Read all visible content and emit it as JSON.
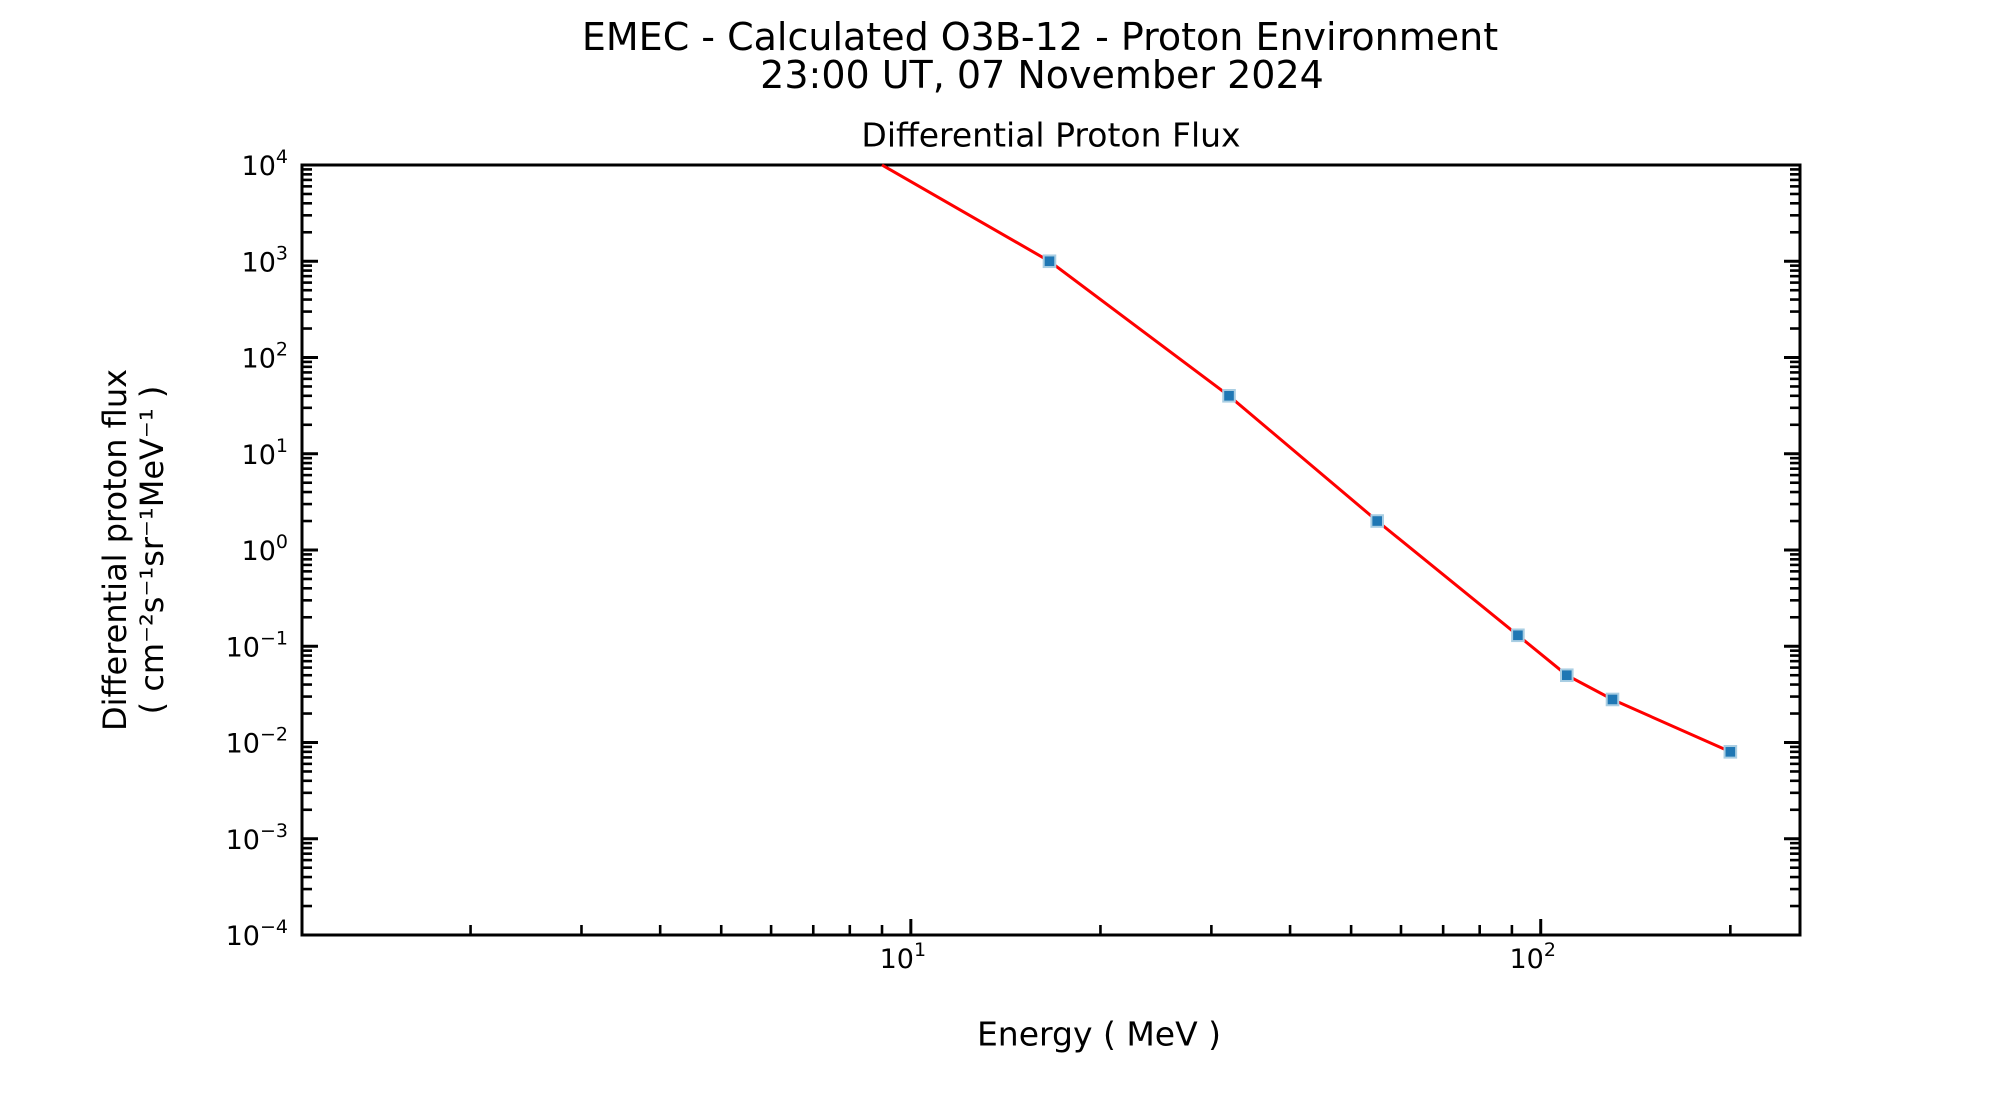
{
  "figure": {
    "suptitle_line1": "EMEC - Calculated O3B-12 - Proton Environment",
    "suptitle_line2": "23:00 UT, 07 November 2024",
    "axes_title": "Differential Proton Flux",
    "xlabel": "Energy ( MeV )",
    "ylabel_line1": "Differential proton flux",
    "ylabel_line2": "( cm⁻²s⁻¹sr⁻¹MeV⁻¹ )"
  },
  "colors": {
    "background": "#ffffff",
    "axis": "#000000",
    "text": "#000000",
    "line": "#ff0000",
    "marker_fill": "#1f77b4",
    "marker_edge": "#a9cee3"
  },
  "chart_data": {
    "type": "line",
    "title": "Differential Proton Flux",
    "suptitle": "EMEC - Calculated O3B-12 - Proton Environment 23:00 UT, 07 November 2024",
    "xlabel": "Energy ( MeV )",
    "ylabel": "Differential proton flux ( cm⁻²s⁻¹sr⁻¹MeV⁻¹ )",
    "x_scale": "log",
    "y_scale": "log",
    "xlim": [
      1.08,
      258
    ],
    "ylim": [
      0.0001,
      10000
    ],
    "grid": false,
    "legend": null,
    "series": [
      {
        "name": "differential-proton-flux",
        "x": [
          16.6,
          32,
          55,
          92,
          110,
          130,
          200
        ],
        "y": [
          1000,
          40,
          2,
          0.13,
          0.05,
          0.028,
          0.008
        ],
        "line_color": "#ff0000",
        "marker": "square",
        "line_entry_point": {
          "x": 9.0,
          "y": 10000
        }
      }
    ],
    "x_major_ticks": [
      {
        "value": 10,
        "base": "10",
        "exp": "1"
      },
      {
        "value": 100,
        "base": "10",
        "exp": "2"
      }
    ],
    "y_major_ticks": [
      {
        "value": 10000,
        "base": "10",
        "exp": "4"
      },
      {
        "value": 1000,
        "base": "10",
        "exp": "3"
      },
      {
        "value": 100,
        "base": "10",
        "exp": "2"
      },
      {
        "value": 10,
        "base": "10",
        "exp": "1"
      },
      {
        "value": 1,
        "base": "10",
        "exp": "0"
      },
      {
        "value": 0.1,
        "base": "10",
        "exp": "−1"
      },
      {
        "value": 0.01,
        "base": "10",
        "exp": "−2"
      },
      {
        "value": 0.001,
        "base": "10",
        "exp": "−3"
      },
      {
        "value": 0.0001,
        "base": "10",
        "exp": "−4"
      }
    ]
  }
}
